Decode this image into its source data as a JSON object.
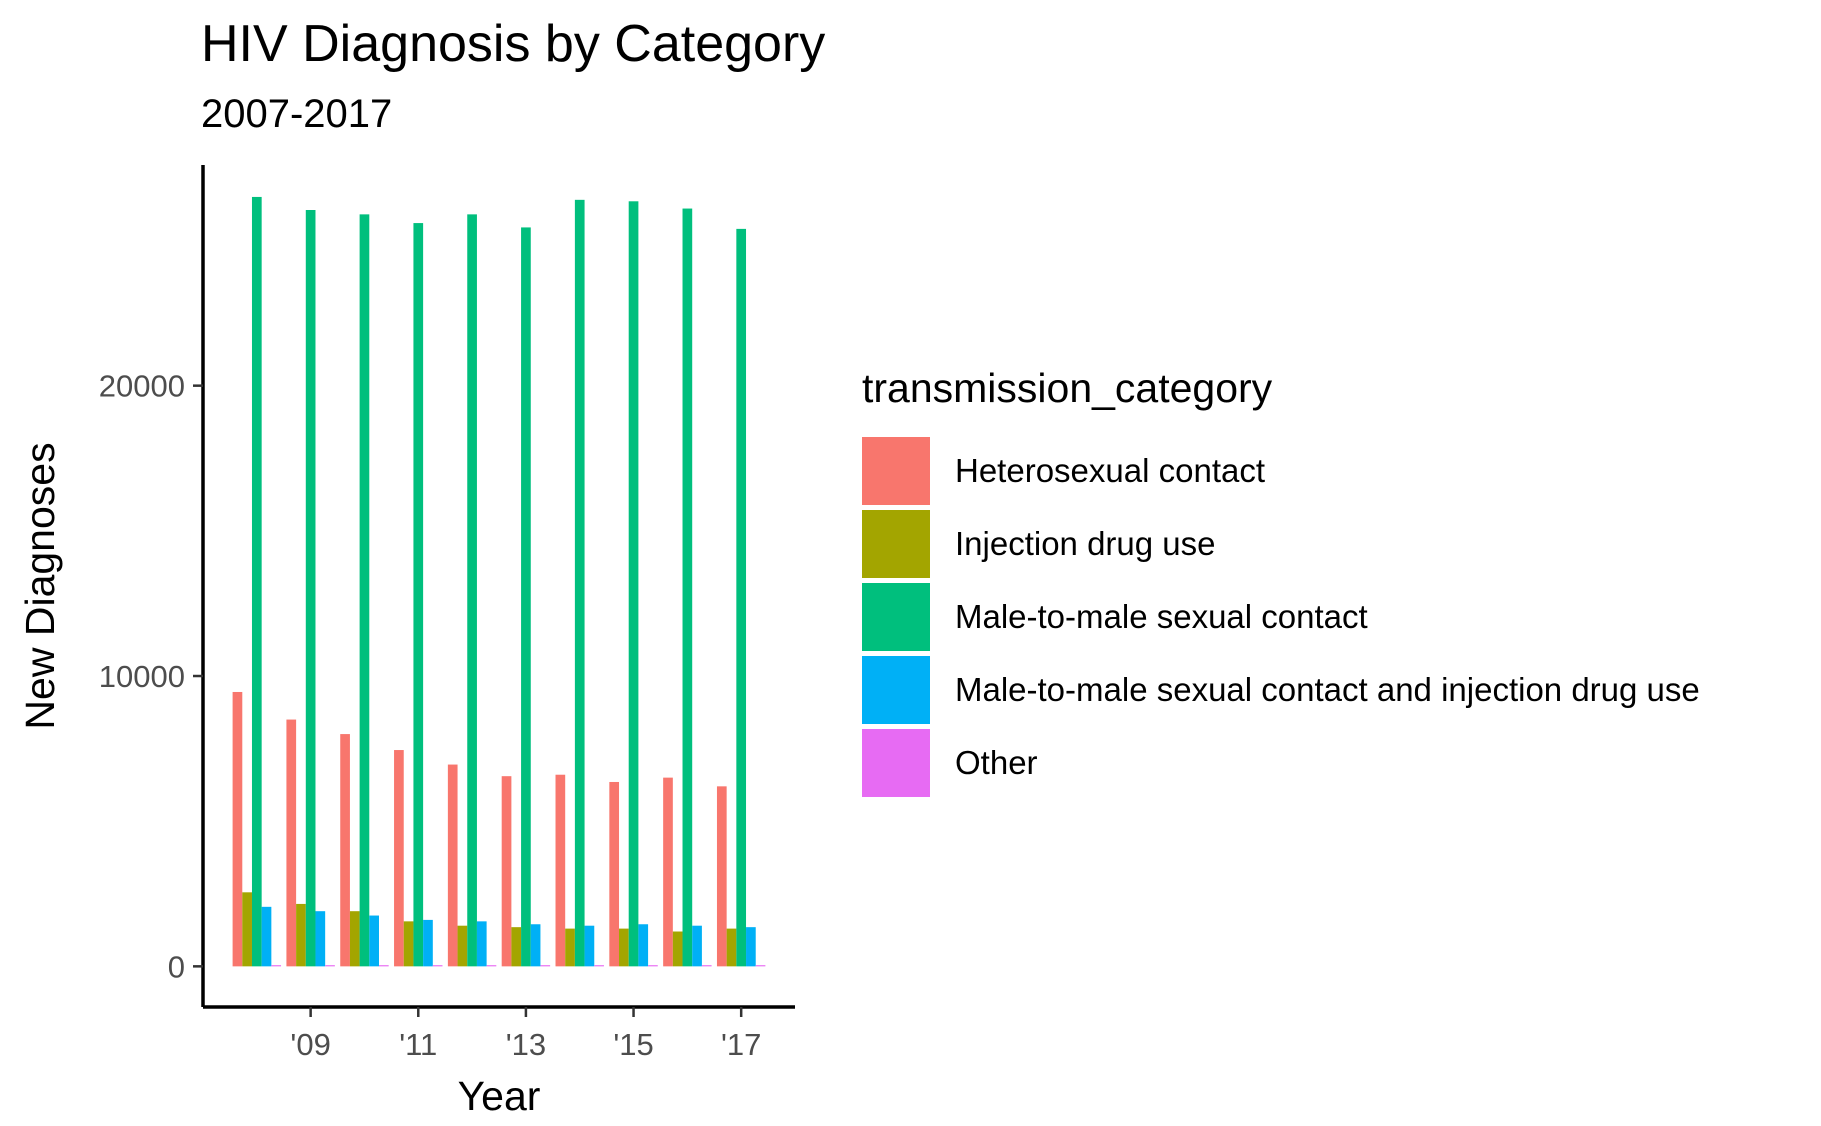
{
  "chart_data": {
    "type": "bar",
    "title": "HIV Diagnosis by Category",
    "subtitle": "2007-2017",
    "xlabel": "Year",
    "ylabel": "New Diagnoses",
    "x": [
      2008,
      2009,
      2010,
      2011,
      2012,
      2013,
      2014,
      2015,
      2016,
      2017
    ],
    "x_tick_values": [
      2009,
      2011,
      2013,
      2015,
      2017
    ],
    "x_tick_labels": [
      "'09",
      "'11",
      "'13",
      "'15",
      "'17"
    ],
    "y_tick_values": [
      0,
      10000,
      20000
    ],
    "y_tick_labels": [
      "0",
      "10000",
      "20000"
    ],
    "xlim": [
      2007,
      2018
    ],
    "ylim": [
      -1400,
      27600
    ],
    "grid": false,
    "legend": {
      "title": "transmission_category",
      "placement": "right"
    },
    "series": [
      {
        "name": "Heterosexual contact",
        "color": "#F8766D",
        "values": [
          9450,
          8500,
          8000,
          7450,
          6950,
          6550,
          6600,
          6350,
          6500,
          6200
        ]
      },
      {
        "name": "Injection drug use",
        "color": "#A3A500",
        "values": [
          2550,
          2150,
          1900,
          1550,
          1400,
          1350,
          1300,
          1300,
          1200,
          1300
        ]
      },
      {
        "name": "Male-to-male sexual contact",
        "color": "#00BF7D",
        "values": [
          26500,
          26050,
          25900,
          25600,
          25900,
          25450,
          26400,
          26350,
          26100,
          25400
        ]
      },
      {
        "name": "Male-to-male sexual contact and injection drug use",
        "color": "#00B0F6",
        "values": [
          2050,
          1900,
          1750,
          1600,
          1550,
          1450,
          1400,
          1450,
          1400,
          1350
        ]
      },
      {
        "name": "Other",
        "color": "#E76BF3",
        "values": [
          40,
          40,
          40,
          40,
          40,
          40,
          40,
          40,
          40,
          40
        ]
      }
    ]
  }
}
